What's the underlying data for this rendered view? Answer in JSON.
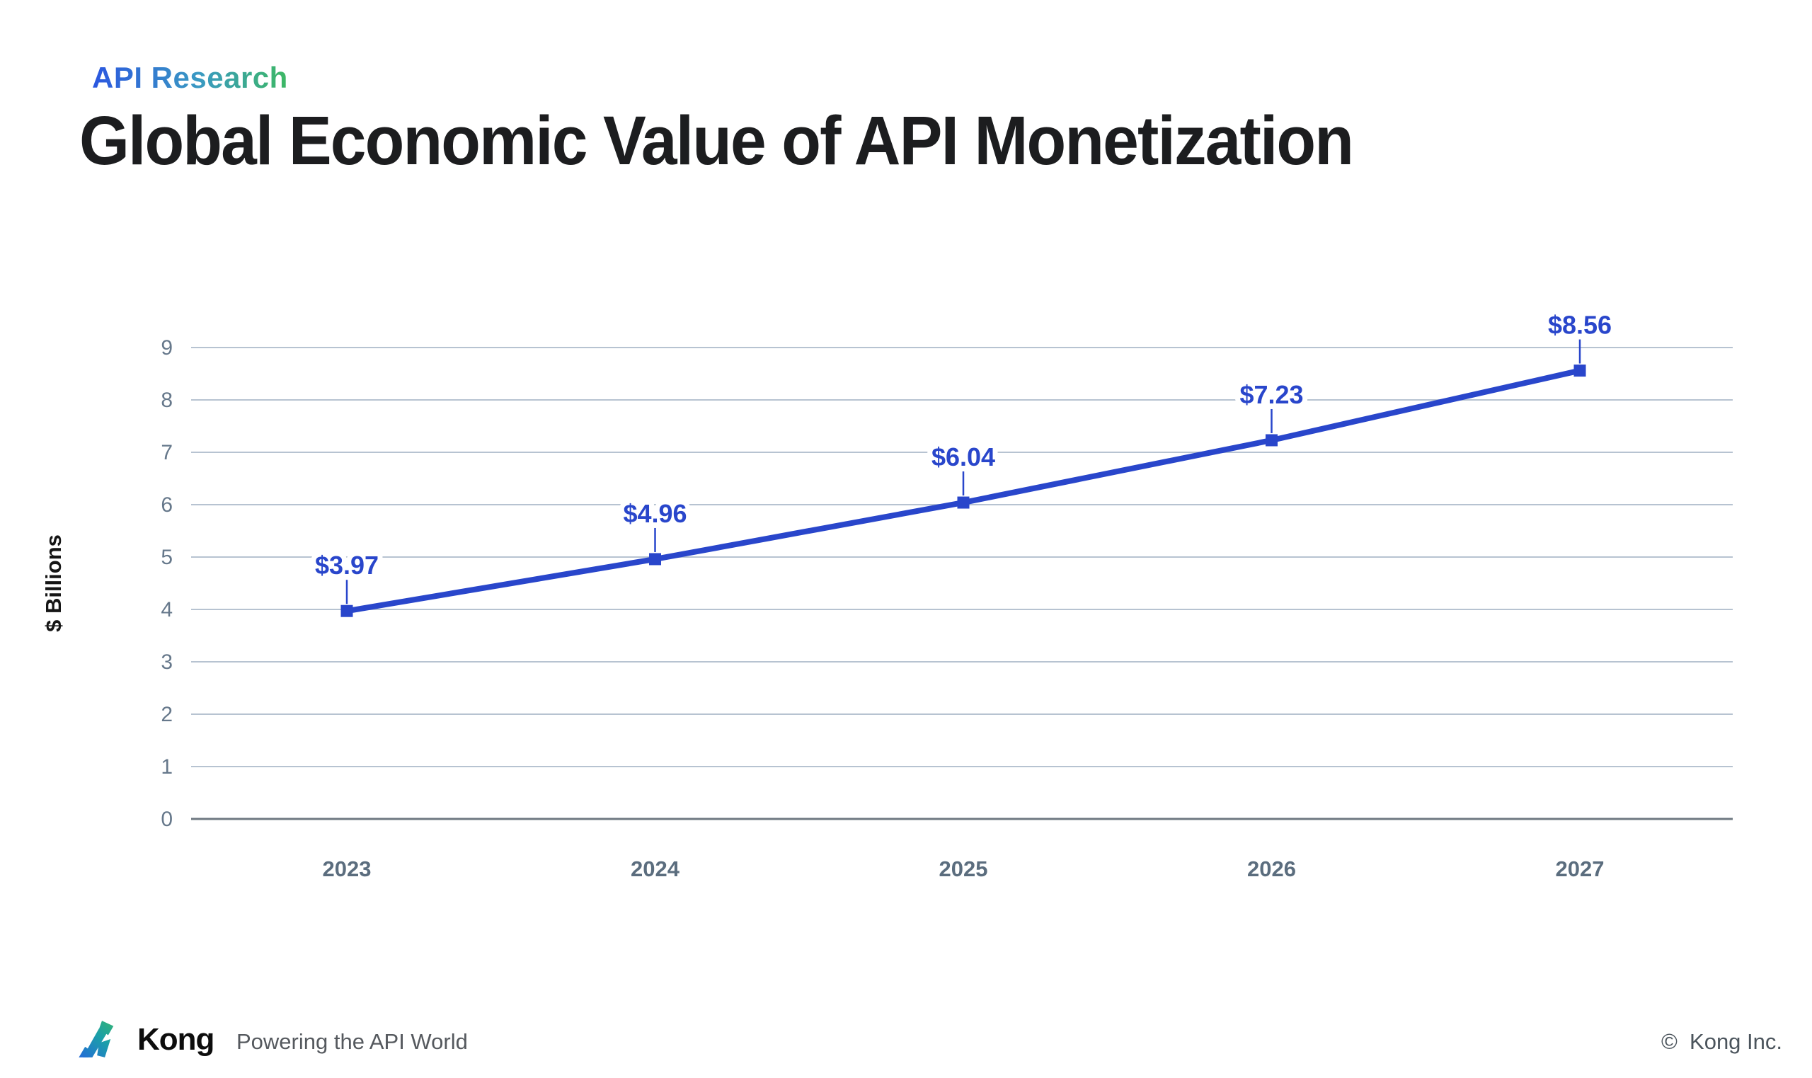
{
  "header": {
    "eyebrow": "API Research",
    "title": "Global Economic Value of API Monetization"
  },
  "chart_data": {
    "type": "line",
    "title": "Global Economic Value of API Monetization",
    "categories": [
      "2023",
      "2024",
      "2025",
      "2026",
      "2027"
    ],
    "values": [
      3.97,
      4.96,
      6.04,
      7.23,
      8.56
    ],
    "point_labels": [
      "$3.97",
      "$4.96",
      "$6.04",
      "$7.23",
      "$8.56"
    ],
    "xlabel": "",
    "ylabel": "$ Billions",
    "ylim": [
      0,
      9
    ],
    "yticks": [
      0,
      1,
      2,
      3,
      4,
      5,
      6,
      7,
      8,
      9
    ],
    "grid": "horizontal",
    "legend": "none",
    "marker": "square",
    "line_color": "#2946cb"
  },
  "colors": {
    "grid_line": "#b7c3d1",
    "axis_line": "#6e7881",
    "tick_label": "#66788b",
    "x_label": "#5b6d7e",
    "eyebrow_gradient": [
      "#2b56e0",
      "#3a9ac2",
      "#3db863"
    ],
    "logo_gradient": [
      "#2563e0",
      "#1ba0a8",
      "#3dbb63"
    ]
  },
  "footer": {
    "brand": "Kong",
    "tagline": "Powering the API World",
    "copyright": "©  Kong Inc."
  }
}
